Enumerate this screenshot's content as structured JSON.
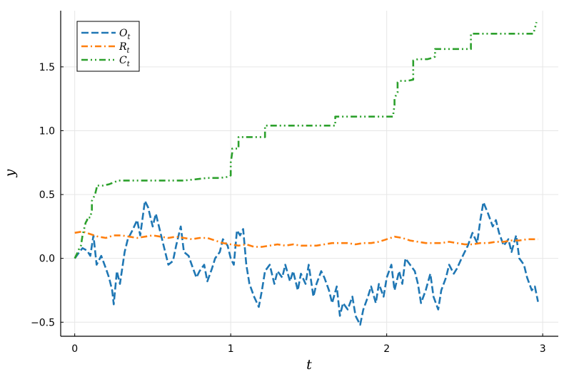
{
  "chart_data": {
    "type": "line",
    "xlabel": "t",
    "ylabel": "y",
    "xlim": [
      -0.09,
      3.1
    ],
    "ylim": [
      -0.61,
      1.94
    ],
    "xticks": [
      0,
      1,
      2,
      3
    ],
    "xtick_labels": [
      "0",
      "1",
      "2",
      "3"
    ],
    "yticks": [
      -0.5,
      0.0,
      0.5,
      1.0,
      1.5
    ],
    "ytick_labels": [
      "−0.5",
      "0.0",
      "0.5",
      "1.0",
      "1.5"
    ],
    "grid": true,
    "legend_position": "top-left",
    "series": [
      {
        "name": "O",
        "sub": "t",
        "color": "#1f77b4",
        "dash": "10 4",
        "x": [
          0.0,
          0.03,
          0.05,
          0.08,
          0.1,
          0.12,
          0.14,
          0.17,
          0.2,
          0.22,
          0.24,
          0.25,
          0.27,
          0.29,
          0.32,
          0.34,
          0.37,
          0.4,
          0.42,
          0.45,
          0.47,
          0.5,
          0.52,
          0.55,
          0.57,
          0.6,
          0.63,
          0.65,
          0.68,
          0.7,
          0.73,
          0.75,
          0.78,
          0.8,
          0.83,
          0.85,
          0.88,
          0.9,
          0.93,
          0.95,
          0.98,
          1.0,
          1.02,
          1.04,
          1.06,
          1.08,
          1.1,
          1.12,
          1.15,
          1.18,
          1.2,
          1.22,
          1.25,
          1.28,
          1.3,
          1.33,
          1.35,
          1.38,
          1.4,
          1.43,
          1.45,
          1.48,
          1.5,
          1.53,
          1.55,
          1.58,
          1.6,
          1.63,
          1.65,
          1.68,
          1.7,
          1.72,
          1.75,
          1.78,
          1.8,
          1.83,
          1.85,
          1.88,
          1.9,
          1.93,
          1.95,
          1.98,
          2.0,
          2.03,
          2.05,
          2.08,
          2.1,
          2.12,
          2.15,
          2.18,
          2.2,
          2.22,
          2.25,
          2.28,
          2.3,
          2.33,
          2.35,
          2.38,
          2.4,
          2.43,
          2.45,
          2.48,
          2.5,
          2.52,
          2.55,
          2.58,
          2.6,
          2.62,
          2.65,
          2.68,
          2.7,
          2.72,
          2.75,
          2.78,
          2.8,
          2.83,
          2.85,
          2.88,
          2.9,
          2.93,
          2.95,
          2.97
        ],
        "y": [
          0.0,
          0.05,
          0.08,
          0.06,
          0.02,
          0.18,
          -0.05,
          0.02,
          -0.08,
          -0.15,
          -0.25,
          -0.36,
          -0.1,
          -0.2,
          0.05,
          0.15,
          0.22,
          0.3,
          0.18,
          0.45,
          0.4,
          0.25,
          0.35,
          0.2,
          0.1,
          -0.05,
          -0.02,
          0.1,
          0.25,
          0.05,
          0.02,
          -0.05,
          -0.15,
          -0.1,
          -0.05,
          -0.18,
          -0.08,
          0.0,
          0.05,
          0.15,
          0.1,
          0.0,
          -0.05,
          0.22,
          0.18,
          0.23,
          -0.05,
          -0.2,
          -0.3,
          -0.38,
          -0.25,
          -0.1,
          -0.05,
          -0.2,
          -0.1,
          -0.15,
          -0.05,
          -0.18,
          -0.1,
          -0.25,
          -0.12,
          -0.2,
          -0.05,
          -0.3,
          -0.2,
          -0.1,
          -0.15,
          -0.25,
          -0.35,
          -0.22,
          -0.45,
          -0.35,
          -0.4,
          -0.3,
          -0.45,
          -0.52,
          -0.4,
          -0.3,
          -0.22,
          -0.35,
          -0.2,
          -0.3,
          -0.15,
          -0.05,
          -0.25,
          -0.1,
          -0.2,
          0.0,
          -0.05,
          -0.1,
          -0.2,
          -0.35,
          -0.25,
          -0.12,
          -0.3,
          -0.4,
          -0.25,
          -0.15,
          -0.05,
          -0.12,
          -0.08,
          0.0,
          0.05,
          0.1,
          0.2,
          0.12,
          0.3,
          0.44,
          0.35,
          0.25,
          0.3,
          0.2,
          0.1,
          0.15,
          0.05,
          0.18,
          0.0,
          -0.05,
          -0.15,
          -0.25,
          -0.22,
          -0.34
        ]
      },
      {
        "name": "R",
        "sub": "t",
        "color": "#ff7f0e",
        "dash": "9 4 2 4",
        "x": [
          0.0,
          0.05,
          0.1,
          0.15,
          0.2,
          0.25,
          0.3,
          0.35,
          0.4,
          0.45,
          0.5,
          0.55,
          0.6,
          0.65,
          0.7,
          0.75,
          0.8,
          0.85,
          0.9,
          0.95,
          1.0,
          1.05,
          1.1,
          1.15,
          1.2,
          1.25,
          1.3,
          1.35,
          1.4,
          1.45,
          1.5,
          1.55,
          1.6,
          1.65,
          1.7,
          1.75,
          1.8,
          1.85,
          1.9,
          1.95,
          2.0,
          2.05,
          2.1,
          2.15,
          2.2,
          2.25,
          2.3,
          2.35,
          2.4,
          2.45,
          2.5,
          2.55,
          2.6,
          2.65,
          2.7,
          2.75,
          2.8,
          2.85,
          2.9,
          2.95,
          2.97
        ],
        "y": [
          0.2,
          0.21,
          0.19,
          0.17,
          0.16,
          0.18,
          0.18,
          0.17,
          0.16,
          0.17,
          0.18,
          0.17,
          0.16,
          0.17,
          0.16,
          0.15,
          0.16,
          0.16,
          0.14,
          0.12,
          0.11,
          0.1,
          0.11,
          0.09,
          0.09,
          0.1,
          0.11,
          0.1,
          0.11,
          0.1,
          0.1,
          0.1,
          0.11,
          0.12,
          0.12,
          0.12,
          0.11,
          0.12,
          0.12,
          0.13,
          0.15,
          0.17,
          0.16,
          0.14,
          0.13,
          0.12,
          0.12,
          0.12,
          0.13,
          0.12,
          0.11,
          0.11,
          0.12,
          0.12,
          0.13,
          0.13,
          0.14,
          0.14,
          0.15,
          0.15,
          0.15
        ]
      },
      {
        "name": "C",
        "sub": "t",
        "color": "#2ca02c",
        "dash": "9 4 2 4 2 4",
        "x": [
          0.0,
          0.02,
          0.03,
          0.04,
          0.05,
          0.06,
          0.07,
          0.08,
          0.08,
          0.1,
          0.11,
          0.11,
          0.13,
          0.14,
          0.14,
          0.18,
          0.22,
          0.28,
          0.35,
          0.45,
          0.55,
          0.62,
          0.7,
          0.78,
          0.85,
          0.93,
          0.99,
          1.0,
          1.0,
          1.01,
          1.01,
          1.05,
          1.05,
          1.13,
          1.22,
          1.22,
          1.3,
          1.4,
          1.5,
          1.6,
          1.67,
          1.67,
          1.75,
          1.85,
          1.95,
          2.04,
          2.05,
          2.05,
          2.06,
          2.07,
          2.07,
          2.08,
          2.13,
          2.17,
          2.17,
          2.2,
          2.26,
          2.29,
          2.31,
          2.31,
          2.38,
          2.45,
          2.5,
          2.54,
          2.54,
          2.6,
          2.7,
          2.8,
          2.9,
          2.94,
          2.95,
          2.96
        ],
        "y": [
          0.0,
          0.05,
          0.08,
          0.1,
          0.18,
          0.23,
          0.28,
          0.3,
          0.32,
          0.32,
          0.38,
          0.45,
          0.5,
          0.55,
          0.57,
          0.57,
          0.58,
          0.61,
          0.61,
          0.61,
          0.61,
          0.61,
          0.61,
          0.62,
          0.63,
          0.63,
          0.64,
          0.65,
          0.75,
          0.83,
          0.86,
          0.86,
          0.95,
          0.95,
          0.95,
          1.04,
          1.04,
          1.04,
          1.04,
          1.04,
          1.04,
          1.11,
          1.11,
          1.11,
          1.11,
          1.11,
          1.2,
          1.25,
          1.28,
          1.3,
          1.38,
          1.39,
          1.39,
          1.4,
          1.55,
          1.56,
          1.56,
          1.57,
          1.58,
          1.64,
          1.64,
          1.64,
          1.64,
          1.64,
          1.76,
          1.76,
          1.76,
          1.76,
          1.76,
          1.76,
          1.8,
          1.85
        ]
      }
    ]
  }
}
